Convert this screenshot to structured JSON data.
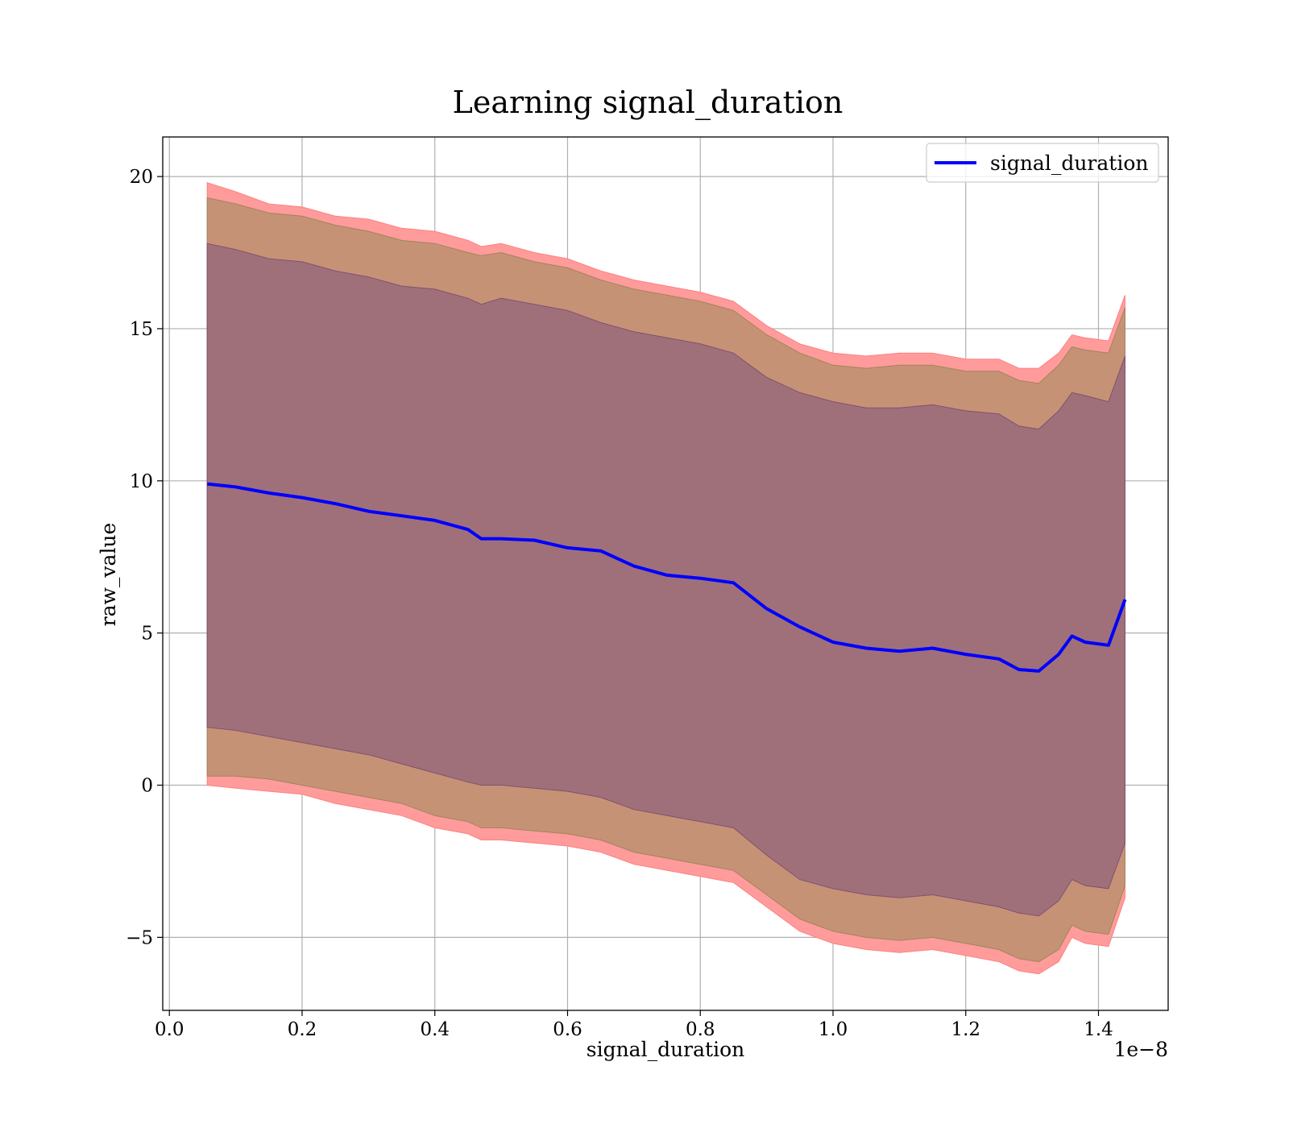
{
  "chart_data": {
    "type": "area",
    "title": "Learning signal_duration",
    "xlabel": "signal_duration",
    "ylabel": "raw_value",
    "x_scale_note": "1e−8",
    "xlim": [
      -0.01,
      1.505
    ],
    "ylim": [
      -7.4,
      21.3
    ],
    "x_ticks": [
      0.0,
      0.2,
      0.4,
      0.6,
      0.8,
      1.0,
      1.2,
      1.4
    ],
    "x_tick_labels": [
      "0.0",
      "0.2",
      "0.4",
      "0.6",
      "0.8",
      "1.0",
      "1.2",
      "1.4"
    ],
    "y_ticks": [
      -5,
      0,
      5,
      10,
      15,
      20
    ],
    "y_tick_labels": [
      "−5",
      "0",
      "5",
      "10",
      "15",
      "20"
    ],
    "grid": true,
    "legend_position": "top-right",
    "colors": {
      "mean_line": "#0000ff",
      "outer_band": "#ff9b9b",
      "middle_band": "#c69276",
      "inner_band": "#a0707a"
    },
    "x": [
      0.057,
      0.1,
      0.15,
      0.2,
      0.25,
      0.3,
      0.35,
      0.4,
      0.45,
      0.47,
      0.5,
      0.55,
      0.6,
      0.65,
      0.7,
      0.75,
      0.8,
      0.85,
      0.9,
      0.95,
      1.0,
      1.05,
      1.1,
      1.15,
      1.2,
      1.25,
      1.28,
      1.31,
      1.34,
      1.36,
      1.38,
      1.415,
      1.44
    ],
    "series": [
      {
        "name": "signal_duration",
        "values": [
          9.9,
          9.8,
          9.6,
          9.45,
          9.25,
          9.0,
          8.85,
          8.7,
          8.4,
          8.1,
          8.1,
          8.05,
          7.8,
          7.7,
          7.2,
          6.9,
          6.8,
          6.65,
          5.8,
          5.2,
          4.7,
          4.5,
          4.4,
          4.5,
          4.3,
          4.15,
          3.8,
          3.75,
          4.3,
          4.9,
          4.7,
          4.6,
          6.1
        ]
      }
    ],
    "bands": [
      {
        "level": "outer",
        "upper": [
          19.8,
          19.5,
          19.1,
          19.0,
          18.7,
          18.6,
          18.3,
          18.2,
          17.9,
          17.7,
          17.8,
          17.5,
          17.3,
          16.9,
          16.6,
          16.4,
          16.2,
          15.9,
          15.1,
          14.5,
          14.2,
          14.1,
          14.2,
          14.2,
          14.0,
          14.0,
          13.7,
          13.7,
          14.2,
          14.8,
          14.7,
          14.6,
          16.1
        ],
        "lower": [
          0.0,
          -0.1,
          -0.2,
          -0.3,
          -0.6,
          -0.8,
          -1.0,
          -1.4,
          -1.6,
          -1.8,
          -1.8,
          -1.9,
          -2.0,
          -2.2,
          -2.6,
          -2.8,
          -3.0,
          -3.2,
          -4.0,
          -4.8,
          -5.2,
          -5.4,
          -5.5,
          -5.4,
          -5.6,
          -5.8,
          -6.1,
          -6.2,
          -5.8,
          -5.0,
          -5.2,
          -5.3,
          -3.7
        ]
      },
      {
        "level": "middle",
        "upper": [
          19.3,
          19.1,
          18.8,
          18.7,
          18.4,
          18.2,
          17.9,
          17.8,
          17.5,
          17.4,
          17.5,
          17.2,
          17.0,
          16.6,
          16.3,
          16.1,
          15.9,
          15.6,
          14.8,
          14.2,
          13.8,
          13.7,
          13.8,
          13.8,
          13.6,
          13.6,
          13.3,
          13.2,
          13.8,
          14.4,
          14.3,
          14.2,
          15.7
        ]
      },
      {
        "level": "middle",
        "lower": [
          0.3,
          0.3,
          0.2,
          0.0,
          -0.2,
          -0.4,
          -0.6,
          -1.0,
          -1.2,
          -1.4,
          -1.4,
          -1.5,
          -1.6,
          -1.8,
          -2.2,
          -2.4,
          -2.6,
          -2.8,
          -3.6,
          -4.4,
          -4.8,
          -5.0,
          -5.1,
          -5.0,
          -5.2,
          -5.4,
          -5.7,
          -5.8,
          -5.4,
          -4.6,
          -4.8,
          -4.9,
          -3.3
        ]
      },
      {
        "level": "inner",
        "upper": [
          17.8,
          17.6,
          17.3,
          17.2,
          16.9,
          16.7,
          16.4,
          16.3,
          16.0,
          15.8,
          16.0,
          15.8,
          15.6,
          15.2,
          14.9,
          14.7,
          14.5,
          14.2,
          13.4,
          12.9,
          12.6,
          12.4,
          12.4,
          12.5,
          12.3,
          12.2,
          11.8,
          11.7,
          12.3,
          12.9,
          12.8,
          12.6,
          14.1
        ]
      },
      {
        "level": "inner",
        "lower": [
          1.9,
          1.8,
          1.6,
          1.4,
          1.2,
          1.0,
          0.7,
          0.4,
          0.1,
          0.0,
          0.0,
          -0.1,
          -0.2,
          -0.4,
          -0.8,
          -1.0,
          -1.2,
          -1.4,
          -2.3,
          -3.1,
          -3.4,
          -3.6,
          -3.7,
          -3.6,
          -3.8,
          -4.0,
          -4.2,
          -4.3,
          -3.8,
          -3.1,
          -3.3,
          -3.4,
          -1.9
        ]
      }
    ]
  }
}
